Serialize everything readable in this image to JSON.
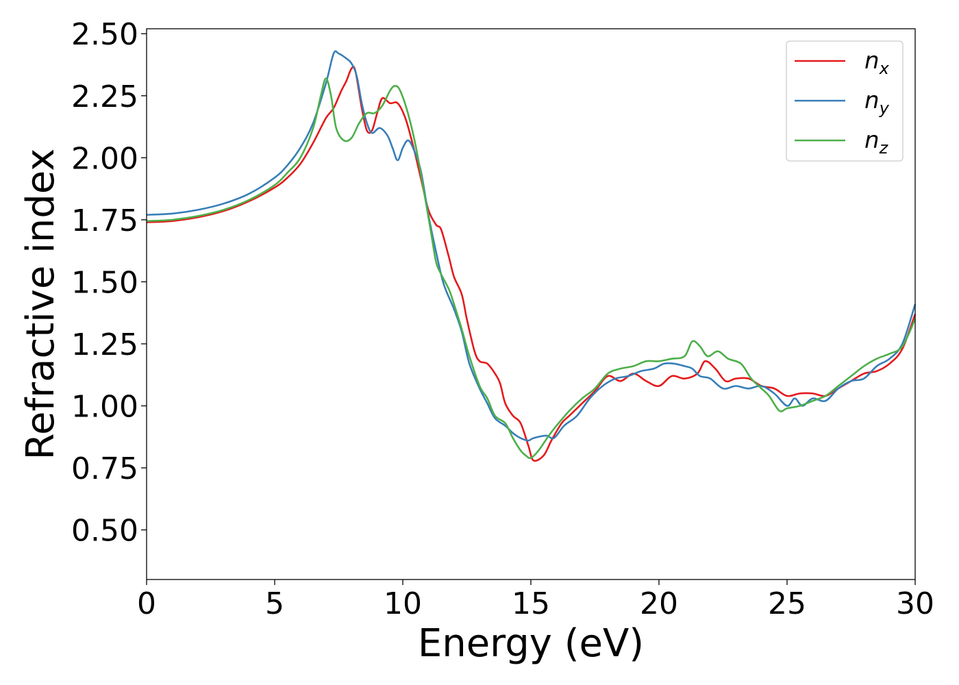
{
  "chart_data": {
    "type": "line",
    "title": "",
    "xlabel": "Energy (eV)",
    "ylabel": "Refractive index",
    "xlim": [
      0,
      30
    ],
    "ylim": [
      0.3,
      2.52
    ],
    "xticks": [
      0,
      5,
      10,
      15,
      20,
      25,
      30
    ],
    "xtick_labels": [
      "0",
      "5",
      "10",
      "15",
      "20",
      "25",
      "30"
    ],
    "yticks": [
      0.5,
      0.75,
      1.0,
      1.25,
      1.5,
      1.75,
      2.0,
      2.25,
      2.5
    ],
    "ytick_labels": [
      "0.50",
      "0.75",
      "1.00",
      "1.25",
      "1.50",
      "1.75",
      "2.00",
      "2.25",
      "2.50"
    ],
    "grid": false,
    "legend_position": "top-right",
    "series": [
      {
        "name": "n",
        "subscript": "x",
        "color": "#e41a1c",
        "points": [
          [
            0,
            1.74
          ],
          [
            1,
            1.745
          ],
          [
            2,
            1.76
          ],
          [
            3,
            1.785
          ],
          [
            4,
            1.825
          ],
          [
            5,
            1.88
          ],
          [
            5.5,
            1.92
          ],
          [
            6,
            1.975
          ],
          [
            6.5,
            2.06
          ],
          [
            7,
            2.16
          ],
          [
            7.3,
            2.2
          ],
          [
            7.6,
            2.27
          ],
          [
            7.8,
            2.31
          ],
          [
            8.0,
            2.36
          ],
          [
            8.15,
            2.35
          ],
          [
            8.4,
            2.2
          ],
          [
            8.6,
            2.11
          ],
          [
            8.8,
            2.11
          ],
          [
            9.0,
            2.18
          ],
          [
            9.2,
            2.24
          ],
          [
            9.5,
            2.22
          ],
          [
            9.8,
            2.22
          ],
          [
            10.1,
            2.16
          ],
          [
            10.4,
            2.05
          ],
          [
            10.7,
            1.92
          ],
          [
            11.0,
            1.79
          ],
          [
            11.3,
            1.73
          ],
          [
            11.5,
            1.71
          ],
          [
            11.8,
            1.6
          ],
          [
            12.0,
            1.52
          ],
          [
            12.3,
            1.45
          ],
          [
            12.5,
            1.35
          ],
          [
            12.8,
            1.22
          ],
          [
            13.0,
            1.18
          ],
          [
            13.3,
            1.17
          ],
          [
            13.6,
            1.13
          ],
          [
            13.8,
            1.09
          ],
          [
            14.0,
            1.01
          ],
          [
            14.3,
            0.96
          ],
          [
            14.6,
            0.93
          ],
          [
            14.9,
            0.84
          ],
          [
            15.1,
            0.78
          ],
          [
            15.5,
            0.8
          ],
          [
            15.8,
            0.86
          ],
          [
            16.2,
            0.93
          ],
          [
            16.5,
            0.96
          ],
          [
            17.0,
            1.01
          ],
          [
            17.5,
            1.06
          ],
          [
            18.0,
            1.12
          ],
          [
            18.5,
            1.1
          ],
          [
            19.0,
            1.13
          ],
          [
            19.5,
            1.1
          ],
          [
            20.0,
            1.08
          ],
          [
            20.5,
            1.12
          ],
          [
            21.0,
            1.11
          ],
          [
            21.5,
            1.13
          ],
          [
            21.8,
            1.18
          ],
          [
            22.2,
            1.15
          ],
          [
            22.6,
            1.1
          ],
          [
            23.0,
            1.11
          ],
          [
            23.5,
            1.11
          ],
          [
            24.0,
            1.08
          ],
          [
            24.5,
            1.07
          ],
          [
            25.0,
            1.04
          ],
          [
            25.5,
            1.05
          ],
          [
            26.0,
            1.05
          ],
          [
            26.5,
            1.04
          ],
          [
            27.0,
            1.07
          ],
          [
            27.5,
            1.1
          ],
          [
            28.0,
            1.13
          ],
          [
            28.5,
            1.14
          ],
          [
            29.0,
            1.17
          ],
          [
            29.5,
            1.23
          ],
          [
            30.0,
            1.37
          ]
        ]
      },
      {
        "name": "n",
        "subscript": "y",
        "color": "#377eb8",
        "points": [
          [
            0,
            1.77
          ],
          [
            1,
            1.775
          ],
          [
            2,
            1.79
          ],
          [
            3,
            1.815
          ],
          [
            4,
            1.855
          ],
          [
            5,
            1.92
          ],
          [
            5.5,
            1.97
          ],
          [
            6,
            2.04
          ],
          [
            6.5,
            2.14
          ],
          [
            7.0,
            2.3
          ],
          [
            7.3,
            2.42
          ],
          [
            7.5,
            2.42
          ],
          [
            7.8,
            2.4
          ],
          [
            8.0,
            2.38
          ],
          [
            8.2,
            2.33
          ],
          [
            8.4,
            2.22
          ],
          [
            8.6,
            2.14
          ],
          [
            8.8,
            2.1
          ],
          [
            9.1,
            2.12
          ],
          [
            9.4,
            2.09
          ],
          [
            9.6,
            2.04
          ],
          [
            9.8,
            1.99
          ],
          [
            10.0,
            2.04
          ],
          [
            10.2,
            2.07
          ],
          [
            10.4,
            2.04
          ],
          [
            10.7,
            1.95
          ],
          [
            11.0,
            1.77
          ],
          [
            11.3,
            1.62
          ],
          [
            11.6,
            1.49
          ],
          [
            12.0,
            1.39
          ],
          [
            12.3,
            1.3
          ],
          [
            12.6,
            1.17
          ],
          [
            13.0,
            1.07
          ],
          [
            13.3,
            1.01
          ],
          [
            13.6,
            0.95
          ],
          [
            14.0,
            0.92
          ],
          [
            14.3,
            0.89
          ],
          [
            14.6,
            0.87
          ],
          [
            14.9,
            0.86
          ],
          [
            15.1,
            0.87
          ],
          [
            15.6,
            0.88
          ],
          [
            15.9,
            0.87
          ],
          [
            16.3,
            0.92
          ],
          [
            16.8,
            0.96
          ],
          [
            17.3,
            1.03
          ],
          [
            17.8,
            1.08
          ],
          [
            18.3,
            1.11
          ],
          [
            18.8,
            1.12
          ],
          [
            19.3,
            1.14
          ],
          [
            19.8,
            1.15
          ],
          [
            20.2,
            1.17
          ],
          [
            20.6,
            1.17
          ],
          [
            21.0,
            1.16
          ],
          [
            21.3,
            1.15
          ],
          [
            21.6,
            1.12
          ],
          [
            22.0,
            1.11
          ],
          [
            22.5,
            1.07
          ],
          [
            23.0,
            1.08
          ],
          [
            23.5,
            1.07
          ],
          [
            24.0,
            1.08
          ],
          [
            24.5,
            1.05
          ],
          [
            25.0,
            1.0
          ],
          [
            25.3,
            1.03
          ],
          [
            25.6,
            1.0
          ],
          [
            26.0,
            1.03
          ],
          [
            26.5,
            1.02
          ],
          [
            27.0,
            1.07
          ],
          [
            27.5,
            1.1
          ],
          [
            28.0,
            1.11
          ],
          [
            28.5,
            1.16
          ],
          [
            29.0,
            1.19
          ],
          [
            29.5,
            1.25
          ],
          [
            30.0,
            1.41
          ]
        ]
      },
      {
        "name": "n",
        "subscript": "z",
        "color": "#4daf4a",
        "points": [
          [
            0,
            1.745
          ],
          [
            1,
            1.75
          ],
          [
            2,
            1.765
          ],
          [
            3,
            1.79
          ],
          [
            4,
            1.83
          ],
          [
            5,
            1.89
          ],
          [
            5.5,
            1.94
          ],
          [
            6,
            2.0
          ],
          [
            6.5,
            2.12
          ],
          [
            6.8,
            2.25
          ],
          [
            7.0,
            2.32
          ],
          [
            7.2,
            2.25
          ],
          [
            7.4,
            2.12
          ],
          [
            7.7,
            2.07
          ],
          [
            8.0,
            2.08
          ],
          [
            8.3,
            2.14
          ],
          [
            8.6,
            2.18
          ],
          [
            8.9,
            2.18
          ],
          [
            9.2,
            2.21
          ],
          [
            9.5,
            2.27
          ],
          [
            9.7,
            2.29
          ],
          [
            9.9,
            2.27
          ],
          [
            10.2,
            2.18
          ],
          [
            10.5,
            2.05
          ],
          [
            10.8,
            1.88
          ],
          [
            11.1,
            1.7
          ],
          [
            11.3,
            1.58
          ],
          [
            11.5,
            1.53
          ],
          [
            11.8,
            1.47
          ],
          [
            12.0,
            1.41
          ],
          [
            12.3,
            1.31
          ],
          [
            12.6,
            1.2
          ],
          [
            13.0,
            1.08
          ],
          [
            13.3,
            1.03
          ],
          [
            13.6,
            0.96
          ],
          [
            14.0,
            0.93
          ],
          [
            14.3,
            0.87
          ],
          [
            14.6,
            0.82
          ],
          [
            14.8,
            0.8
          ],
          [
            15.0,
            0.79
          ],
          [
            15.3,
            0.82
          ],
          [
            15.7,
            0.88
          ],
          [
            16.0,
            0.92
          ],
          [
            16.5,
            0.98
          ],
          [
            17.0,
            1.03
          ],
          [
            17.5,
            1.07
          ],
          [
            18.0,
            1.13
          ],
          [
            18.5,
            1.15
          ],
          [
            19.0,
            1.16
          ],
          [
            19.5,
            1.18
          ],
          [
            20.0,
            1.18
          ],
          [
            20.5,
            1.19
          ],
          [
            21.0,
            1.2
          ],
          [
            21.3,
            1.26
          ],
          [
            21.6,
            1.24
          ],
          [
            21.9,
            1.2
          ],
          [
            22.3,
            1.22
          ],
          [
            22.7,
            1.19
          ],
          [
            23.2,
            1.17
          ],
          [
            23.6,
            1.11
          ],
          [
            24.0,
            1.07
          ],
          [
            24.3,
            1.04
          ],
          [
            24.7,
            0.98
          ],
          [
            25.0,
            0.99
          ],
          [
            25.5,
            1.0
          ],
          [
            26.0,
            1.02
          ],
          [
            26.5,
            1.04
          ],
          [
            27.0,
            1.08
          ],
          [
            27.5,
            1.12
          ],
          [
            28.0,
            1.16
          ],
          [
            28.5,
            1.19
          ],
          [
            29.0,
            1.21
          ],
          [
            29.5,
            1.24
          ],
          [
            30.0,
            1.35
          ]
        ]
      }
    ]
  }
}
